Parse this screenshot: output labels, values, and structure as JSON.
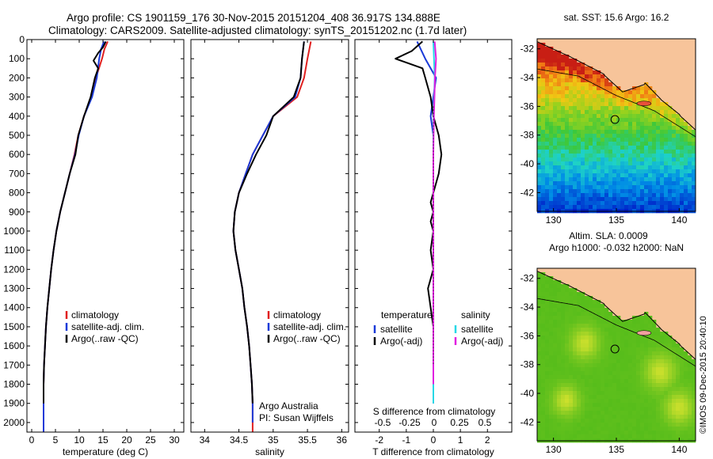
{
  "header": {
    "line1": "Argo profile: CS 1901159_176 30-Nov-2015 20151204_408 36.917S 134.888E",
    "line2": "Climatology: CARS2009. Satellite-adjusted climatology: synTS_20151202.nc (1.7d later)"
  },
  "credit": "©IMOS 09-Dec-2015 20:40:10",
  "colors": {
    "climatology": "#e02020",
    "satellite": "#1a3ad8",
    "argo": "#000000",
    "sal_satellite": "#27d8e6",
    "sal_argo": "#e020e0",
    "land": "#f7c49a"
  },
  "chart_data": [
    {
      "type": "line",
      "id": "temperature",
      "xlabel": "temperature (deg C)",
      "xlim": [
        -1,
        32
      ],
      "xticks": [
        0,
        5,
        10,
        15,
        20,
        25,
        30
      ],
      "ylim": [
        0,
        2050
      ],
      "yticks": [
        0,
        100,
        200,
        300,
        400,
        500,
        600,
        700,
        800,
        900,
        1000,
        1100,
        1200,
        1300,
        1400,
        1500,
        1600,
        1700,
        1800,
        1900,
        2000
      ],
      "y_inverted": true,
      "legend": [
        "climatology",
        "satellite-adj. clim.",
        "Argo(..raw -QC)"
      ],
      "series": [
        {
          "name": "climatology",
          "color": "#e02020",
          "x": [
            16.0,
            15.3,
            14.8,
            13.5,
            12.6,
            11.0,
            9.8,
            9.0,
            8.0,
            7.0,
            6.0,
            5.2,
            4.6,
            4.1,
            3.7,
            3.3,
            3.0,
            2.8,
            2.6,
            2.5,
            2.5,
            2.5
          ],
          "y": [
            10,
            50,
            100,
            200,
            300,
            400,
            500,
            600,
            700,
            800,
            900,
            1000,
            1100,
            1200,
            1300,
            1400,
            1500,
            1600,
            1700,
            1800,
            1900,
            2050
          ]
        },
        {
          "name": "satellite-adj. clim.",
          "color": "#1a3ad8",
          "x": [
            15.2,
            14.6,
            14.2,
            13.7,
            12.7,
            11.0,
            9.9,
            9.1,
            8.0,
            7.0,
            6.0,
            5.2,
            4.6,
            4.1,
            3.7,
            3.3,
            3.0,
            2.8,
            2.6,
            2.5,
            2.5,
            2.5
          ],
          "y": [
            10,
            50,
            100,
            200,
            300,
            400,
            500,
            600,
            700,
            800,
            900,
            1000,
            1100,
            1200,
            1300,
            1400,
            1500,
            1600,
            1700,
            1800,
            1900,
            2050
          ]
        },
        {
          "name": "Argo(..raw -QC)",
          "color": "#000000",
          "x": [
            15.6,
            15.0,
            14.0,
            13.0,
            14.0,
            13.3,
            12.4,
            11.0,
            9.8,
            9.2,
            8.0,
            7.0,
            6.0,
            5.2,
            4.6,
            4.1,
            3.7,
            3.3,
            3.0,
            2.8,
            2.6,
            2.5,
            2.5
          ],
          "y": [
            10,
            40,
            70,
            110,
            150,
            200,
            300,
            400,
            500,
            600,
            700,
            800,
            900,
            1000,
            1100,
            1200,
            1300,
            1400,
            1500,
            1600,
            1700,
            1800,
            1900
          ]
        }
      ]
    },
    {
      "type": "line",
      "id": "salinity",
      "xlabel": "salinity",
      "xlim": [
        33.8,
        36.1
      ],
      "xticks": [
        34,
        34.5,
        35,
        35.5,
        36
      ],
      "ylim": [
        0,
        2050
      ],
      "y_inverted": true,
      "legend": [
        "climatology",
        "satellite-adj. clim.",
        "Argo(..raw -QC)"
      ],
      "annotation": [
        "Argo Australia",
        "PI: Susan Wijffels"
      ],
      "series": [
        {
          "name": "climatology",
          "color": "#e02020",
          "x": [
            35.55,
            35.5,
            35.45,
            35.35,
            35.0,
            34.85,
            34.7,
            34.6,
            34.5,
            34.44,
            34.42,
            34.45,
            34.5,
            34.55,
            34.58,
            34.62,
            34.65,
            34.67,
            34.69,
            34.7,
            34.7
          ],
          "y": [
            10,
            100,
            200,
            300,
            400,
            500,
            600,
            700,
            800,
            900,
            1000,
            1100,
            1200,
            1300,
            1400,
            1500,
            1600,
            1700,
            1800,
            1900,
            2050
          ]
        },
        {
          "name": "satellite-adj. clim.",
          "color": "#1a3ad8",
          "x": [
            35.45,
            35.42,
            35.4,
            35.32,
            35.0,
            34.85,
            34.7,
            34.6,
            34.5,
            34.44,
            34.42,
            34.45,
            34.5,
            34.55,
            34.58,
            34.62,
            34.65,
            34.67,
            34.69,
            34.7,
            34.7
          ],
          "y": [
            10,
            100,
            200,
            300,
            400,
            500,
            600,
            700,
            800,
            900,
            1000,
            1100,
            1200,
            1300,
            1400,
            1500,
            1600,
            1700,
            1800,
            1900,
            2000
          ]
        },
        {
          "name": "Argo(..raw -QC)",
          "color": "#000000",
          "x": [
            35.45,
            35.42,
            35.4,
            35.3,
            35.0,
            34.9,
            34.75,
            34.62,
            34.5,
            34.44,
            34.42,
            34.45,
            34.5,
            34.55,
            34.58,
            34.62,
            34.65,
            34.67,
            34.69,
            34.7
          ],
          "y": [
            10,
            100,
            200,
            300,
            400,
            500,
            600,
            700,
            800,
            900,
            1000,
            1100,
            1200,
            1300,
            1400,
            1500,
            1600,
            1700,
            1800,
            1900
          ]
        }
      ]
    },
    {
      "type": "line",
      "id": "difference",
      "xlabel": "T difference from climatology",
      "top_label": "S difference from climatology",
      "xlim": [
        -2.9,
        2.9
      ],
      "xticks": [
        -2,
        -1,
        0,
        1,
        2
      ],
      "top_ticks": [
        "-0.5",
        "-0.25",
        "0",
        "0.25",
        "0.5"
      ],
      "ylim": [
        0,
        2050
      ],
      "y_inverted": true,
      "legend_left": [
        "temperature",
        "satellite",
        "Argo(-adj)"
      ],
      "legend_right": [
        "salinity",
        "satellite",
        "Argo(-adj)"
      ],
      "series": [
        {
          "name": "temperature satellite",
          "color": "#1a3ad8",
          "x": [
            -0.6,
            -0.3,
            0.1,
            0.0,
            -0.1,
            0.0,
            0.0,
            0.0,
            0.0,
            0.0,
            0.0,
            0.0,
            0.0,
            0.0,
            0.0,
            0.0,
            0.0,
            0.0,
            0.0,
            0.0
          ],
          "y": [
            10,
            100,
            200,
            300,
            400,
            500,
            600,
            700,
            800,
            900,
            1000,
            1100,
            1200,
            1300,
            1400,
            1500,
            1600,
            1700,
            1800,
            1900
          ]
        },
        {
          "name": "temperature Argo(-adj)",
          "color": "#000000",
          "x": [
            -0.4,
            -0.8,
            -1.4,
            -0.4,
            -0.3,
            -0.1,
            0.0,
            0.2,
            0.3,
            0.2,
            0.1,
            0.0,
            -0.1,
            0.0,
            -0.1,
            0.0,
            -0.1,
            0.0,
            -0.2,
            -0.1,
            0.0,
            0.0,
            0.0,
            0.0
          ],
          "y": [
            10,
            60,
            100,
            150,
            200,
            300,
            400,
            500,
            600,
            700,
            750,
            800,
            850,
            900,
            950,
            1000,
            1100,
            1200,
            1300,
            1400,
            1500,
            1600,
            1700,
            1800
          ]
        },
        {
          "name": "salinity satellite",
          "color": "#27d8e6",
          "x": [
            0.0,
            0.05,
            0.03,
            0.01,
            0.0,
            0.0,
            0.0,
            0.0,
            0.0,
            0.0,
            0.0,
            0.0,
            0.0,
            0.0,
            0.0,
            0.0,
            0.0
          ],
          "y": [
            10,
            200,
            300,
            400,
            500,
            600,
            700,
            800,
            900,
            1000,
            1200,
            1400,
            1500,
            1600,
            1700,
            1800,
            1900
          ]
        },
        {
          "name": "salinity Argo(-adj)",
          "color": "#e020e0",
          "x": [
            0.05,
            0.1,
            0.06,
            0.04,
            0.02,
            0.01,
            0.0,
            0.0,
            0.0,
            0.0,
            0.0,
            0.0,
            0.0
          ],
          "y": [
            10,
            100,
            200,
            300,
            400,
            500,
            600,
            800,
            1000,
            1200,
            1400,
            1600,
            1800
          ]
        }
      ]
    },
    {
      "type": "heatmap",
      "id": "sst-map",
      "title": "sat. SST: 15.6 Argo: 16.2",
      "xlim": [
        128.7,
        141.3
      ],
      "xticks": [
        130,
        135,
        140
      ],
      "ylim": [
        -43.3,
        -31.3
      ],
      "yticks": [
        -32,
        -34,
        -36,
        -38,
        -40,
        -42
      ],
      "marker": {
        "lon": 134.888,
        "lat": -36.917
      }
    },
    {
      "type": "heatmap",
      "id": "sla-map",
      "title": "Altim. SLA: 0.0009",
      "subtitle": "Argo h1000: -0.032 h2000: NaN",
      "xlim": [
        128.7,
        141.3
      ],
      "xticks": [
        130,
        135,
        140
      ],
      "ylim": [
        -43.3,
        -31.3
      ],
      "yticks": [
        -32,
        -34,
        -36,
        -38,
        -40,
        -42
      ],
      "marker": {
        "lon": 134.888,
        "lat": -36.917
      }
    }
  ]
}
